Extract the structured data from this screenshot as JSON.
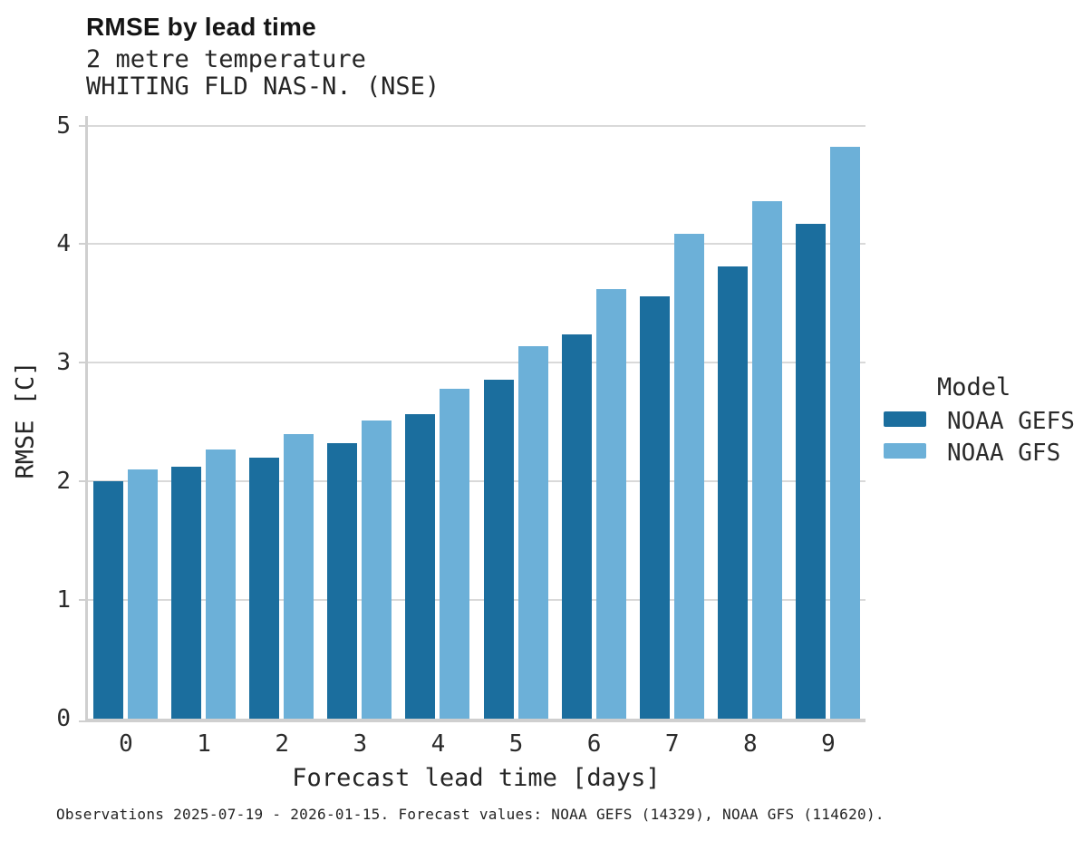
{
  "header": {
    "title": "RMSE by lead time",
    "subtitle_line1": "2 metre temperature",
    "subtitle_line2": "WHITING FLD NAS-N. (NSE)"
  },
  "legend": {
    "title": "Model",
    "entries": [
      {
        "label": "NOAA GEFS",
        "color": "#1b6e9e"
      },
      {
        "label": "NOAA GFS",
        "color": "#6cb0d8"
      }
    ]
  },
  "footer": {
    "text": "Observations 2025-07-19 - 2026-01-15. Forecast values: NOAA GEFS (14329), NOAA GFS (114620)."
  },
  "colors": {
    "gefs": "#1b6e9e",
    "gfs": "#6cb0d8",
    "gridline": "#d9d9d9",
    "spine": "#cfcfcf"
  },
  "chart_data": {
    "type": "bar",
    "title": "RMSE by lead time",
    "subtitle": [
      "2 metre temperature",
      "WHITING FLD NAS-N. (NSE)"
    ],
    "xlabel": "Forecast lead time [days]",
    "ylabel": "RMSE [C]",
    "categories": [
      "0",
      "1",
      "2",
      "3",
      "4",
      "5",
      "6",
      "7",
      "8",
      "9"
    ],
    "series": [
      {
        "name": "NOAA GEFS",
        "color": "#1b6e9e",
        "values": [
          2.0,
          2.12,
          2.2,
          2.32,
          2.57,
          2.86,
          3.24,
          3.56,
          3.81,
          4.17
        ]
      },
      {
        "name": "NOAA GFS",
        "color": "#6cb0d8",
        "values": [
          2.1,
          2.27,
          2.4,
          2.51,
          2.78,
          3.14,
          3.62,
          4.09,
          4.36,
          4.82
        ]
      }
    ],
    "ylim": [
      0,
      5
    ],
    "yticks": [
      0,
      1,
      2,
      3,
      4,
      5
    ],
    "grid": true,
    "legend_title": "Model",
    "legend_position": "right",
    "caption": "Observations 2025-07-19 - 2026-01-15. Forecast values: NOAA GEFS (14329), NOAA GFS (114620)."
  }
}
